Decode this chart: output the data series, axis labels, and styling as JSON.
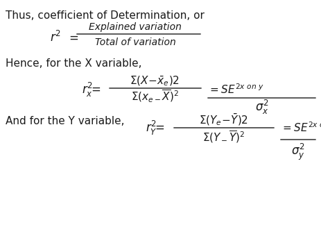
{
  "background_color": "#ffffff",
  "text_color": "#1a1a1a",
  "figsize": [
    4.64,
    3.37
  ],
  "dpi": 100,
  "line1": "Thus, coefficient of Determination, or",
  "line3": "Hence, for the X variable,",
  "ry_prefix": "And for the Y variable, ",
  "frac_num_text": "Explained variation",
  "frac_den_text": "Total of variation"
}
